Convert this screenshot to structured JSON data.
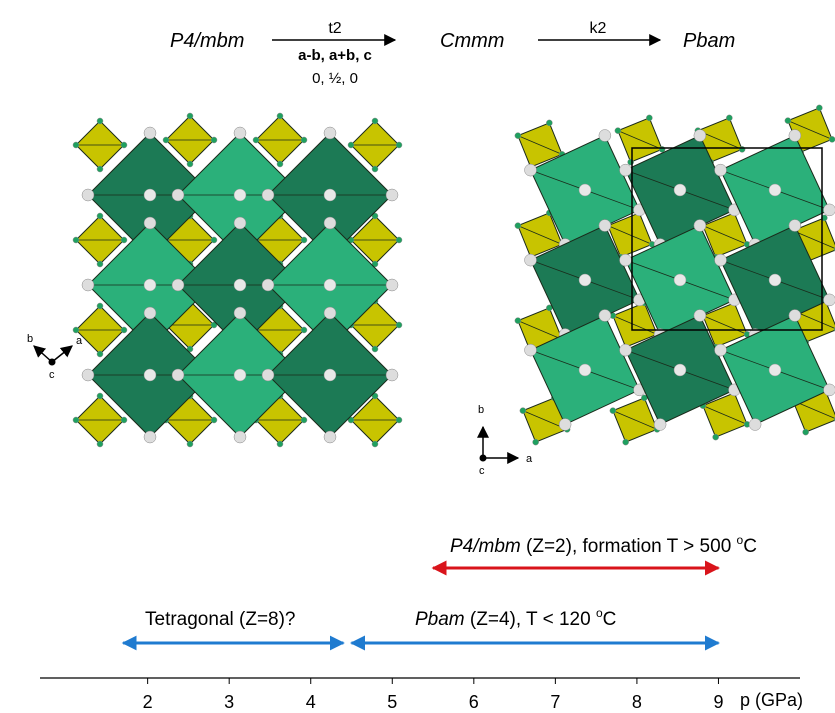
{
  "scheme": {
    "start": "P4/mbm",
    "step1": {
      "index": "t2",
      "basis": "a-b, a+b, c",
      "origin": "0, ½, 0"
    },
    "intermediate": "Cmmm",
    "step2": {
      "index": "k2"
    },
    "end": "Pbam"
  },
  "left_axes": {
    "a": "a",
    "b": "b",
    "c": "c"
  },
  "right_axes": {
    "a": "a",
    "b": "b",
    "c": "c"
  },
  "fields": [
    {
      "name": "P4/mbm",
      "italic": true,
      "detail": " (Z=2), formation T > 500 ",
      "degree": "o",
      "unit": "C",
      "from": 5.5,
      "to": 9,
      "color": "#d9141b"
    },
    {
      "name": "Tetragonal (Z=8)?",
      "italic": false,
      "from": 1.7,
      "to": 4.4,
      "color": "#1f7bd0"
    },
    {
      "name": "Pbam",
      "italic": true,
      "detail": " (Z=4), T < 120 ",
      "degree": "o",
      "unit": "C",
      "from": 4.5,
      "to": 9,
      "color": "#1f7bd0"
    }
  ],
  "pressure_axis": {
    "label": "p (GPa)",
    "ticks": [
      2,
      3,
      4,
      5,
      6,
      7,
      8,
      9
    ],
    "xlim": [
      0.68,
      10
    ]
  }
}
